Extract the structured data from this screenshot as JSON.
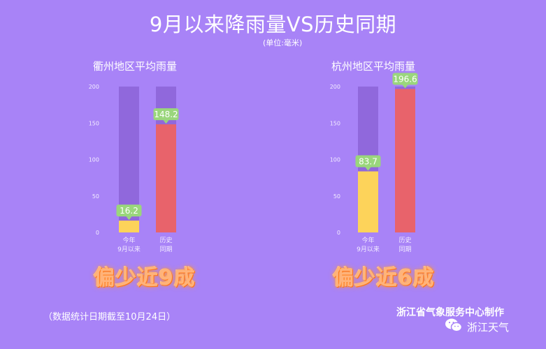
{
  "title": "9月以来降雨量VS历史同期",
  "unit": "(单位:毫米)",
  "footnote": "（数据统计日期截至10月24日）",
  "credit": "浙江省气象服务中心制作",
  "brand": {
    "name": "浙江天气",
    "icon": "wechat-icon"
  },
  "colors": {
    "background": "#a883f7",
    "track": "#9068dc",
    "current": "#fdd35a",
    "history": "#e8636b",
    "label_bg": "#9ad67c"
  },
  "chart_data": [
    {
      "type": "bar",
      "title": "衢州地区平均雨量",
      "categories": [
        [
          "今年",
          "9月以来"
        ],
        [
          "历史",
          "同期"
        ]
      ],
      "values": [
        16.2,
        148.2
      ],
      "ylim": [
        0,
        200
      ],
      "yticks": [
        0,
        50,
        100,
        150,
        200
      ],
      "conclusion": "偏少近9成"
    },
    {
      "type": "bar",
      "title": "杭州地区平均雨量",
      "categories": [
        [
          "今年",
          "9月以来"
        ],
        [
          "历史",
          "同期"
        ]
      ],
      "values": [
        83.7,
        196.6
      ],
      "ylim": [
        0,
        200
      ],
      "yticks": [
        0,
        50,
        100,
        150,
        200
      ],
      "conclusion": "偏少近6成"
    }
  ]
}
